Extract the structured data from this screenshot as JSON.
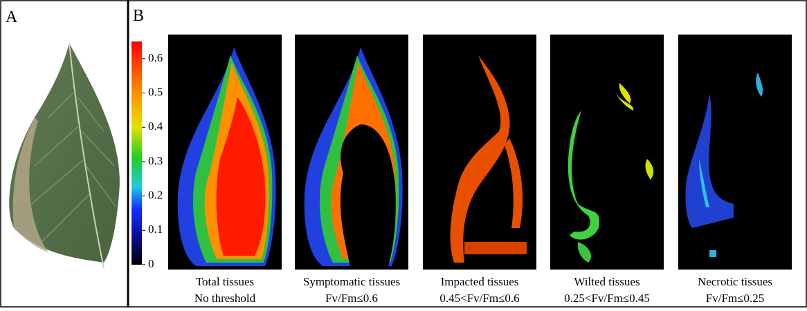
{
  "panel_a": {
    "label": "A"
  },
  "panel_b": {
    "label": "B",
    "colorbar": {
      "range": [
        0,
        0.65
      ],
      "ticks": [
        0,
        0.1,
        0.2,
        0.3,
        0.4,
        0.5,
        0.6
      ]
    },
    "images": [
      {
        "title": "Total tissues",
        "threshold": "No threshold"
      },
      {
        "title": "Symptomatic tissues",
        "threshold": "Fv/Fm≤0.6"
      },
      {
        "title": "Impacted tissues",
        "threshold": "0.45<Fv/Fm≤0.6"
      },
      {
        "title": "Wilted tissues",
        "threshold": "0.25<Fv/Fm≤0.45"
      },
      {
        "title": "Necrotic tissues",
        "threshold": "Fv/Fm≤0.25"
      }
    ]
  }
}
